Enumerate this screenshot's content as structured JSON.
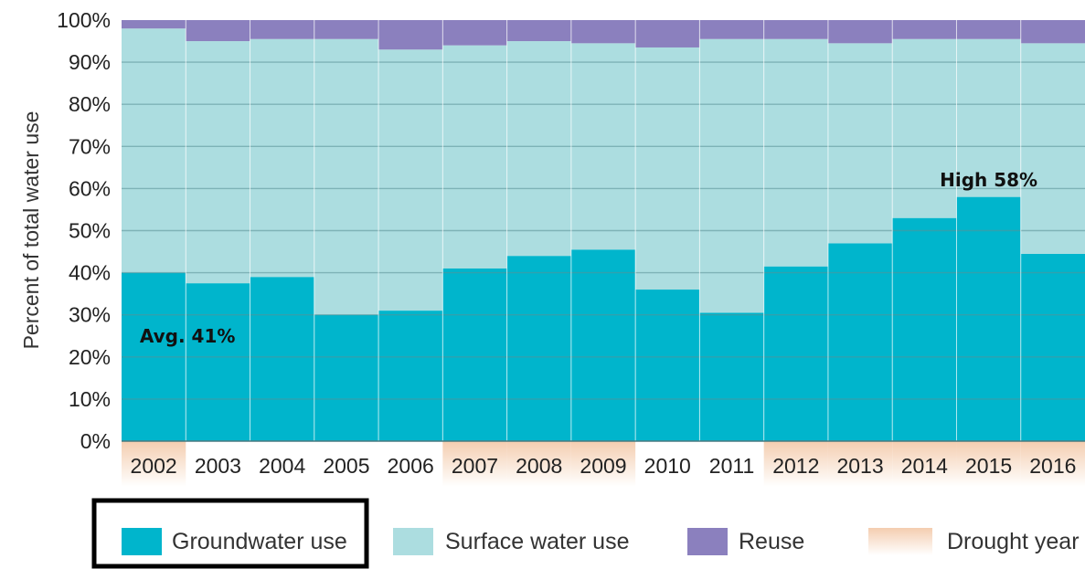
{
  "chart_data": {
    "type": "bar",
    "stacked": true,
    "ylabel": "Percent of total water use",
    "ylim": [
      0,
      100
    ],
    "yticks": [
      "0%",
      "10%",
      "20%",
      "30%",
      "40%",
      "50%",
      "60%",
      "70%",
      "80%",
      "90%",
      "100%"
    ],
    "categories": [
      "2002",
      "2003",
      "2004",
      "2005",
      "2006",
      "2007",
      "2008",
      "2009",
      "2010",
      "2011",
      "2012",
      "2013",
      "2014",
      "2015",
      "2016"
    ],
    "series": [
      {
        "name": "Groundwater use",
        "color": "#00B5CC",
        "values": [
          40,
          37.5,
          39,
          30,
          31,
          41,
          44,
          45.5,
          36,
          30.5,
          41.5,
          47,
          53,
          58,
          44.5
        ]
      },
      {
        "name": "Surface water use",
        "color": "#ACDDE0",
        "values": [
          58,
          57.5,
          56.5,
          65.5,
          62,
          53,
          51,
          49,
          57.5,
          65,
          54,
          47.5,
          42.5,
          37.5,
          50
        ]
      },
      {
        "name": "Reuse",
        "color": "#8B80BE",
        "values": [
          2,
          5,
          4.5,
          4.5,
          7,
          6,
          5,
          5.5,
          6.5,
          4.5,
          4.5,
          5.5,
          4.5,
          4.5,
          5.5
        ]
      }
    ],
    "drought_years": [
      "2002",
      "2007",
      "2008",
      "2009",
      "2012",
      "2013",
      "2014",
      "2015",
      "2016"
    ],
    "drought_legend": "Drought year",
    "drought_color": "#F4CDB0",
    "grid": true,
    "legend_position": "bottom",
    "annotations": [
      {
        "text": "Avg. 41%",
        "category": "2002",
        "y": 25
      },
      {
        "text": "High 58%",
        "category": "2015",
        "y": 62
      }
    ],
    "highlighted_legend_item": "Groundwater use"
  }
}
